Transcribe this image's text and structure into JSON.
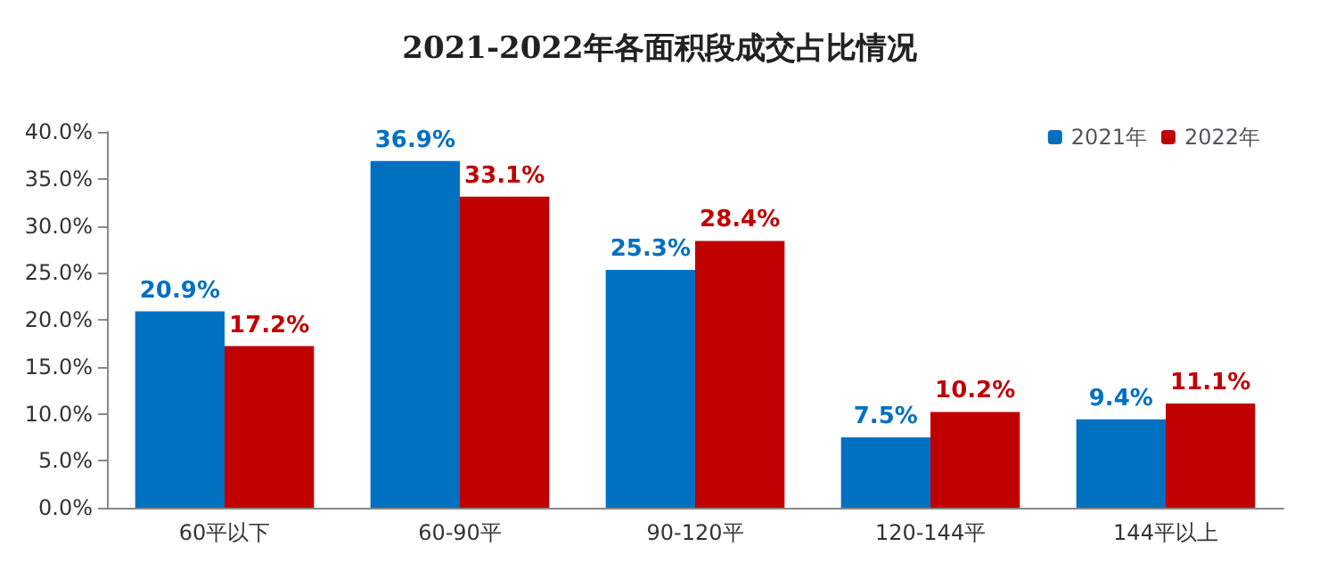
{
  "chart_data": {
    "type": "bar",
    "title": "2021-2022年各面积段成交占比情况",
    "categories": [
      "60平以下",
      "60-90平",
      "90-120平",
      "120-144平",
      "144平以上"
    ],
    "series": [
      {
        "name": "2021年",
        "color": "#0070c0",
        "values": [
          20.9,
          36.9,
          25.3,
          7.5,
          9.4
        ],
        "value_labels": [
          "20.9%",
          "36.9%",
          "25.3%",
          "7.5%",
          "9.4%"
        ]
      },
      {
        "name": "2022年",
        "color": "#c00000",
        "values": [
          17.2,
          33.1,
          28.4,
          10.2,
          11.1
        ],
        "value_labels": [
          "17.2%",
          "33.1%",
          "28.4%",
          "10.2%",
          "11.1%"
        ]
      }
    ],
    "ylim": [
      0,
      40
    ],
    "yticks": [
      {
        "value": 0,
        "label": "0.0%"
      },
      {
        "value": 5,
        "label": "5.0%"
      },
      {
        "value": 10,
        "label": "10.0%"
      },
      {
        "value": 15,
        "label": "15.0%"
      },
      {
        "value": 20,
        "label": "20.0%"
      },
      {
        "value": 25,
        "label": "25.0%"
      },
      {
        "value": 30,
        "label": "30.0%"
      },
      {
        "value": 35,
        "label": "35.0%"
      },
      {
        "value": 40,
        "label": "40.0%"
      }
    ],
    "grid": false,
    "legend": "top right"
  }
}
